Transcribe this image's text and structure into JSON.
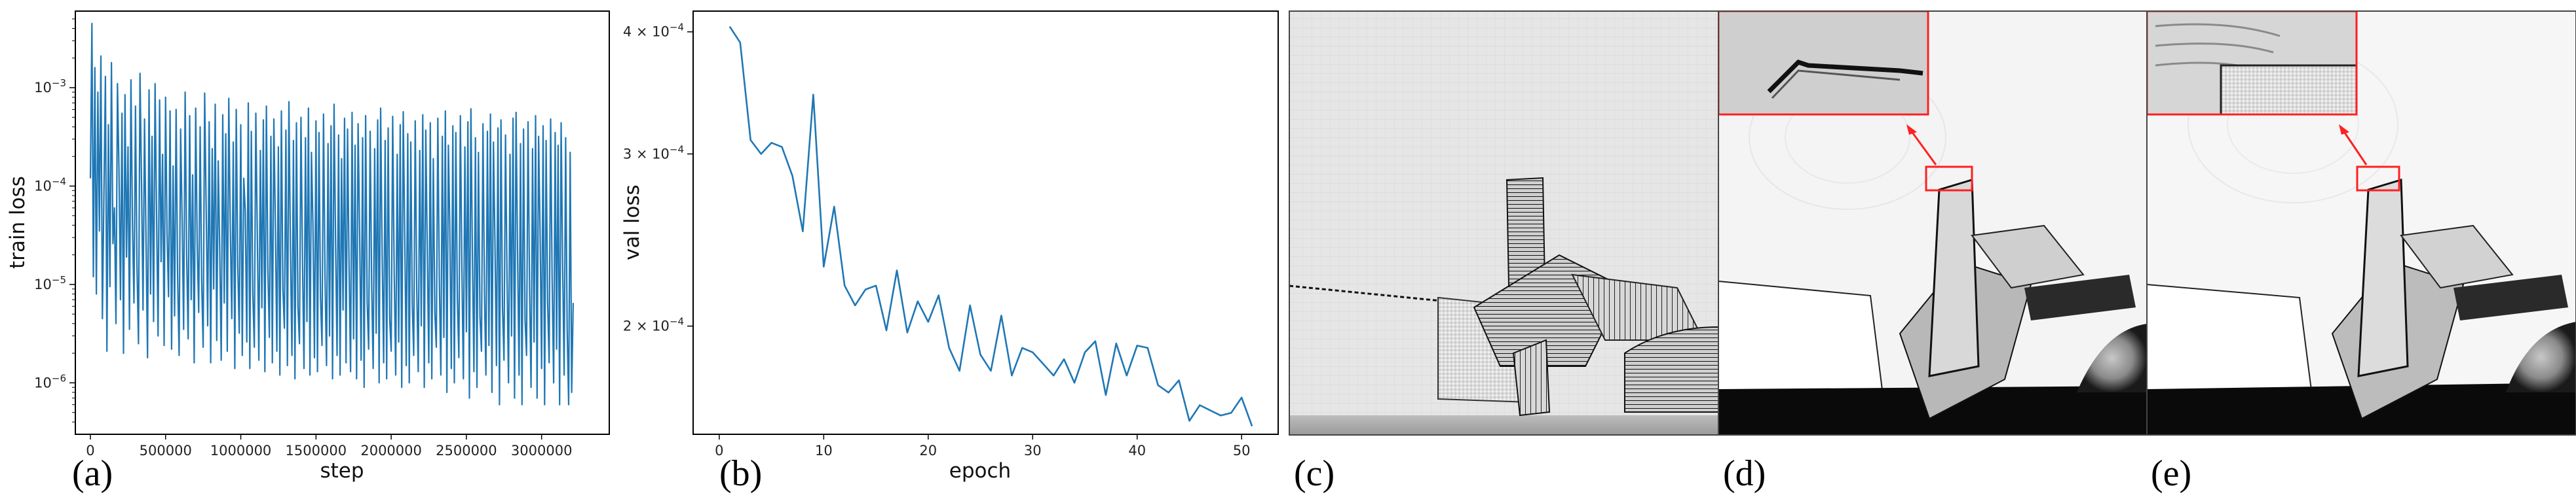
{
  "chart_data": [
    {
      "type": "line",
      "xlabel": "step",
      "ylabel": "train loss",
      "yscale": "log",
      "xlim": [
        -100000,
        3450000
      ],
      "ylim": [
        3e-07,
        0.006
      ],
      "x_ticks": [
        "0",
        "500000",
        "1000000",
        "1500000",
        "2000000",
        "2500000",
        "3000000"
      ],
      "x_tick_values": [
        0,
        500000,
        1000000,
        1500000,
        2000000,
        2500000,
        3000000
      ],
      "y_ticks": [
        "10^-3",
        "10^-4",
        "10^-5",
        "10^-6"
      ],
      "y_tick_values": [
        0.001,
        0.0001,
        1e-05,
        1e-06
      ],
      "grid": false,
      "color": "#1f77b4",
      "series": [
        {
          "x_start": 0,
          "x_step": 10000,
          "values": [
            0.00012,
            0.0045,
            1.2e-05,
            0.0016,
            8e-06,
            0.0009,
            3.5e-05,
            0.0021,
            4.5e-06,
            8e-05,
            0.0013,
            2.1e-06,
            0.00042,
            9.5e-06,
            0.0018,
            2.6e-05,
            6e-05,
            4e-06,
            0.0011,
            0.00015,
            7e-06,
            0.00055,
            2e-06,
            0.00085,
            1.9e-05,
            0.00025,
            3.5e-06,
            0.0012,
            4e-05,
            6.5e-06,
            0.00065,
            1.5e-05,
            2.5e-06,
            0.0014,
            0.00011,
            5.5e-06,
            0.00048,
            2.8e-05,
            1.8e-06,
            0.00095,
            8e-06,
            0.00032,
            4.2e-06,
            0.0011,
            5e-05,
            3e-06,
            0.00075,
            1.7e-05,
            0.00021,
            2.4e-06,
            0.0008,
            3.3e-05,
            7.5e-06,
            0.00058,
            2.2e-06,
            0.00016,
            4.8e-06,
            0.0006,
            1.2e-05,
            1.9e-06,
            0.00038,
            4.5e-05,
            3.5e-06,
            0.0009,
            2e-05,
            2.8e-06,
            0.00052,
            7e-06,
            0.00013,
            1.6e-06,
            0.00062,
            2.6e-05,
            5.2e-06,
            0.0004,
            1.1e-05,
            2.3e-06,
            0.00088,
            6e-05,
            3.8e-06,
            0.00045,
            1.6e-06,
            0.00024,
            9e-06,
            0.00068,
            2.7e-06,
            0.00018,
            2.2e-05,
            1.7e-06,
            0.00053,
            6.5e-06,
            0.00034,
            2.1e-06,
            0.00078,
            3.8e-05,
            4.5e-06,
            0.00028,
            1.4e-06,
            0.0006,
            1.6e-05,
            3.2e-06,
            0.00042,
            1.9e-06,
            0.00012,
            5.5e-05,
            2.6e-06,
            0.0007,
            1.4e-06,
            0.00036,
            8e-06,
            2.3e-06,
            0.00055,
            3e-05,
            1.7e-06,
            0.00023,
            5.8e-06,
            0.00047,
            1.3e-06,
            0.00065,
            1.4e-05,
            2.9e-06,
            0.00032,
            1.6e-06,
            0.00048,
            4.2e-05,
            2.1e-06,
            0.00025,
            1.2e-06,
            0.00058,
            9e-06,
            3.6e-06,
            0.00037,
            1.5e-06,
            0.00072,
            2.4e-05,
            1.9e-06,
            0.00029,
            1.1e-06,
            0.00044,
            6e-06,
            2.5e-06,
            0.0005,
            1.8e-05,
            1.4e-06,
            0.00031,
            4.2e-06,
            0.00062,
            1.2e-06,
            0.00022,
            4e-05,
            1.8e-06,
            0.00046,
            1.3e-06,
            0.00035,
            7.5e-06,
            2.4e-06,
            0.00054,
            1.2e-05,
            1.5e-06,
            0.00027,
            3e-06,
            0.00041,
            1.1e-06,
            0.00068,
            2.8e-05,
            1.9e-06,
            0.00033,
            1.2e-06,
            0.00019,
            5.5e-06,
            0.00049,
            1.6e-06,
            0.00038,
            1.6e-05,
            1.3e-06,
            0.00056,
            2.8e-06,
            0.00026,
            1.1e-06,
            0.00043,
            3.5e-05,
            1.7e-06,
            0.00031,
            9e-07,
            0.00052,
            6.8e-06,
            2.2e-06,
            0.00036,
            1e-05,
            1.4e-06,
            0.00024,
            3.2e-06,
            0.00047,
            1e-06,
            0.00062,
            2e-05,
            1.6e-06,
            0.00029,
            1.1e-06,
            0.00039,
            4.5e-06,
            2.1e-06,
            0.00051,
            1.3e-05,
            1.2e-06,
            0.00021,
            2.6e-06,
            0.00042,
            9e-07,
            0.00057,
            3.1e-05,
            1.5e-06,
            0.00034,
            1e-06,
            0.00028,
            6.2e-06,
            1.9e-06,
            0.00046,
            9e-06,
            1.3e-06,
            0.00023,
            3.8e-06,
            0.00053,
            9e-07,
            0.00037,
            2.2e-05,
            1.6e-06,
            0.00044,
            1.1e-06,
            0.00019,
            5.2e-06,
            2.3e-06,
            0.00049,
            1.1e-05,
            1.2e-06,
            0.00032,
            2.9e-06,
            0.00058,
            8e-07,
            0.00026,
            3.8e-05,
            1.4e-06,
            0.00041,
            1e-06,
            0.00035,
            7.2e-06,
            1.8e-06,
            0.00052,
            1.5e-05,
            1.1e-06,
            0.00025,
            3.3e-06,
            0.00045,
            7e-07,
            0.00061,
            1.9e-05,
            1.3e-06,
            0.00031,
            9e-07,
            0.00022,
            4.7e-06,
            2.1e-06,
            0.00043,
            8e-06,
            1.2e-06,
            0.00036,
            2.4e-06,
            0.00054,
            8e-07,
            0.00028,
            2.7e-05,
            1.5e-06,
            0.00039,
            6e-07,
            0.00047,
            5.8e-06,
            1.7e-06,
            0.00033,
            1.2e-05,
            1e-06,
            0.00021,
            3e-06,
            0.00049,
            7e-07,
            0.00056,
            2.1e-05,
            1.2e-06,
            0.00027,
            6e-07,
            0.00038,
            4.4e-06,
            1.9e-06,
            0.00045,
            9.5e-06,
            9e-07,
            0.00024,
            2.6e-06,
            0.00052,
            7e-07,
            0.00032,
            3.4e-05,
            1.4e-06,
            0.00041,
            6e-07,
            0.00029,
            6.6e-06,
            1.6e-06,
            0.00048,
            1.1e-05,
            1e-06,
            0.00035,
            2.2e-06,
            0.00026,
            6e-07,
            0.00044,
            1.6e-05,
            1.2e-06,
            0.00031,
            3.5e-06,
            6e-07,
            0.00022,
            8e-07,
            6.5e-06
          ]
        }
      ]
    },
    {
      "type": "line",
      "xlabel": "epoch",
      "ylabel": "val loss",
      "yscale": "log",
      "xlim": [
        -2.5,
        53.5
      ],
      "ylim": [
        0.000155,
        0.00042
      ],
      "x_ticks": [
        "0",
        "10",
        "20",
        "30",
        "40",
        "50"
      ],
      "x_tick_values": [
        0,
        10,
        20,
        30,
        40,
        50
      ],
      "y_ticks": [
        "4 × 10^-4",
        "3 × 10^-4",
        "2 × 10^-4"
      ],
      "y_tick_values": [
        0.0004,
        0.0003,
        0.0002
      ],
      "grid": false,
      "color": "#1f77b4",
      "series": [
        {
          "x": [
            1,
            2,
            3,
            4,
            5,
            6,
            7,
            8,
            9,
            10,
            11,
            12,
            13,
            14,
            15,
            16,
            17,
            18,
            19,
            20,
            21,
            22,
            23,
            24,
            25,
            26,
            27,
            28,
            29,
            30,
            31,
            32,
            33,
            34,
            35,
            36,
            37,
            38,
            39,
            40,
            41,
            42,
            43,
            44,
            45,
            46,
            47,
            48,
            49,
            50,
            51
          ],
          "values": [
            0.000405,
            0.00039,
            0.00031,
            0.0003,
            0.000308,
            0.000305,
            0.000285,
            0.00025,
            0.000345,
            0.00023,
            0.000265,
            0.00022,
            0.00021,
            0.000218,
            0.00022,
            0.000198,
            0.000228,
            0.000197,
            0.000212,
            0.000202,
            0.000215,
            0.00019,
            0.00018,
            0.00021,
            0.000187,
            0.00018,
            0.000205,
            0.000178,
            0.00019,
            0.000188,
            0.000183,
            0.000178,
            0.000185,
            0.000175,
            0.000188,
            0.000193,
            0.00017,
            0.000192,
            0.000178,
            0.000191,
            0.00019,
            0.000174,
            0.000171,
            0.000176,
            0.00016,
            0.000166,
            0.000164,
            0.000162,
            0.000163,
            0.000169,
            0.000158
          ]
        }
      ]
    }
  ],
  "panels": {
    "a": "(a)",
    "b": "(b)",
    "c": "(c)",
    "d": "(d)",
    "e": "(e)"
  },
  "colors": {
    "line": "#1f77b4",
    "highlight": "#ff2020"
  }
}
